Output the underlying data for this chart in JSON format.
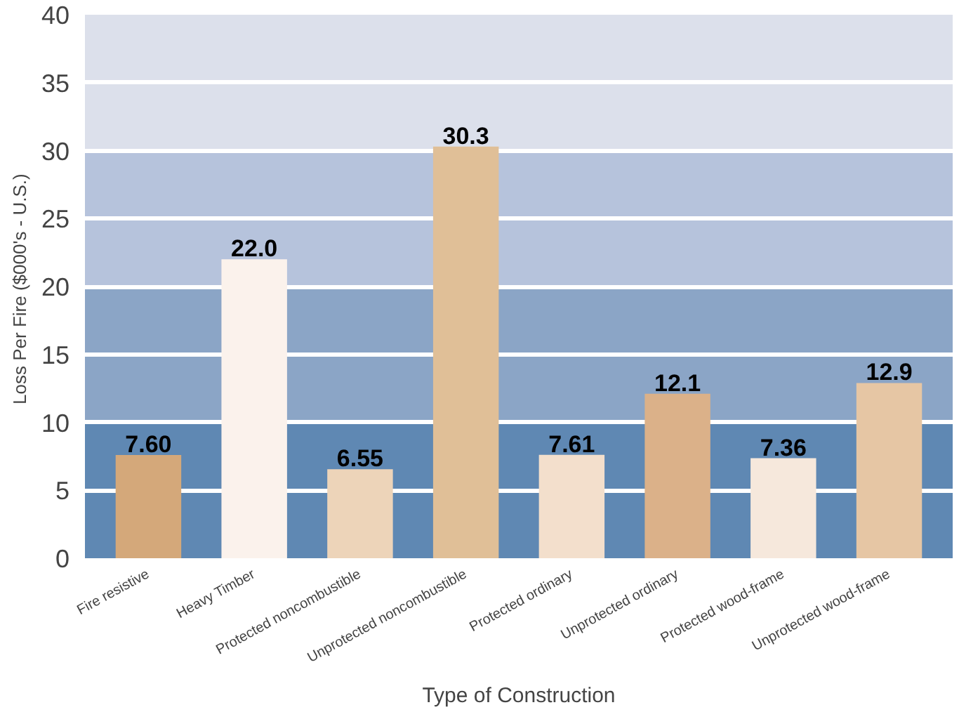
{
  "chart_data": {
    "type": "bar",
    "xlabel": "Type of Construction",
    "ylabel": "Loss Per Fire  ($000's - U.S.)",
    "categories": [
      "Fire resistive",
      "Heavy Timber",
      "Protected noncombustible",
      "Unprotected noncombustible",
      "Protected ordinary",
      "Unprotected ordinary",
      "Protected wood-frame",
      "Unprotected wood-frame"
    ],
    "values": [
      7.6,
      22.0,
      6.55,
      30.3,
      7.61,
      12.1,
      7.36,
      12.9
    ],
    "value_labels": [
      "7.60",
      "22.0",
      "6.55",
      "30.3",
      "7.61",
      "12.1",
      "7.36",
      "12.9"
    ],
    "colors": [
      "#d4a87a",
      "#fbf2ec",
      "#edd4b9",
      "#e0bf97",
      "#f3dfcc",
      "#dbb189",
      "#f6e8dc",
      "#e6c6a4"
    ],
    "ylim": [
      0,
      40
    ],
    "yticks": [
      0,
      5,
      10,
      15,
      20,
      25,
      30,
      35,
      40
    ],
    "grid": "y",
    "bands": [
      {
        "axis": "y",
        "from": 0,
        "to": 10,
        "color": "#5f88b3"
      },
      {
        "axis": "y",
        "from": 10,
        "to": 20,
        "color": "#8ba5c6"
      },
      {
        "axis": "y",
        "from": 20,
        "to": 30,
        "color": "#b6c3dc"
      },
      {
        "axis": "y",
        "from": 30,
        "to": 40,
        "color": "#dce0eb"
      }
    ]
  }
}
